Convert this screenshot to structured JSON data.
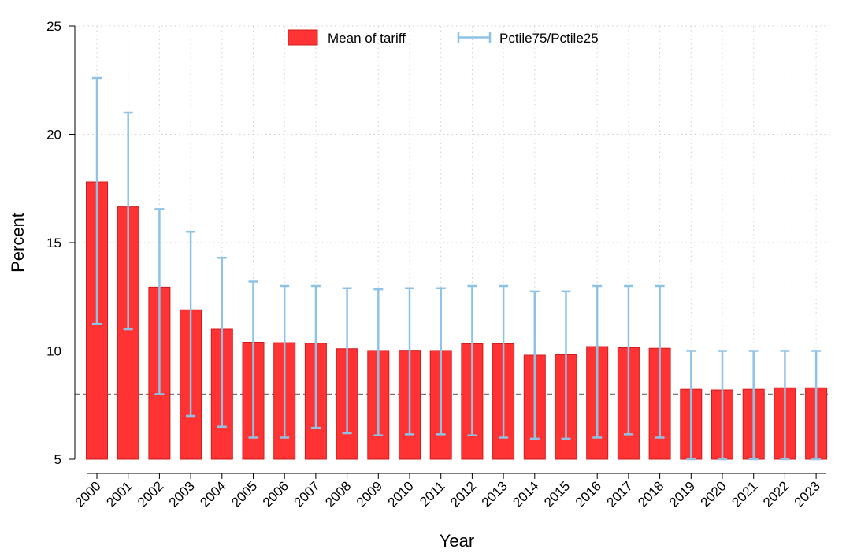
{
  "chart_data": {
    "type": "bar",
    "title": "",
    "xlabel": "Year",
    "ylabel": "Percent",
    "ylim": [
      5,
      25
    ],
    "yticks": [
      5,
      10,
      15,
      20,
      25
    ],
    "reference_line": 8,
    "grid": true,
    "legend_position": "top",
    "categories": [
      "2000",
      "2001",
      "2002",
      "2003",
      "2004",
      "2005",
      "2006",
      "2007",
      "2008",
      "2009",
      "2010",
      "2011",
      "2012",
      "2013",
      "2014",
      "2015",
      "2016",
      "2017",
      "2018",
      "2019",
      "2020",
      "2021",
      "2022",
      "2023"
    ],
    "series": [
      {
        "name": "Mean of tariff",
        "type": "bar",
        "color": "#ff3333",
        "values": [
          17.8,
          16.65,
          12.95,
          11.9,
          11.0,
          10.4,
          10.38,
          10.35,
          10.1,
          10.02,
          10.03,
          10.02,
          10.33,
          10.33,
          9.8,
          9.82,
          10.2,
          10.15,
          10.12,
          8.23,
          8.2,
          8.23,
          8.3,
          8.3
        ]
      },
      {
        "name": "Pctile75/Pctile25",
        "type": "errorbar",
        "color": "#8ec3e6",
        "upper": [
          22.6,
          21.0,
          16.55,
          15.5,
          14.3,
          13.2,
          13.0,
          13.0,
          12.9,
          12.85,
          12.9,
          12.9,
          13.0,
          13.0,
          12.75,
          12.75,
          13.0,
          13.0,
          13.0,
          10.0,
          10.0,
          10.0,
          10.0,
          10.0
        ],
        "lower": [
          11.25,
          11.0,
          8.0,
          7.0,
          6.5,
          6.0,
          6.0,
          6.45,
          6.2,
          6.1,
          6.15,
          6.15,
          6.1,
          6.0,
          5.95,
          5.95,
          6.0,
          6.15,
          6.0,
          5.0,
          5.0,
          5.0,
          5.0,
          5.0
        ]
      }
    ]
  }
}
